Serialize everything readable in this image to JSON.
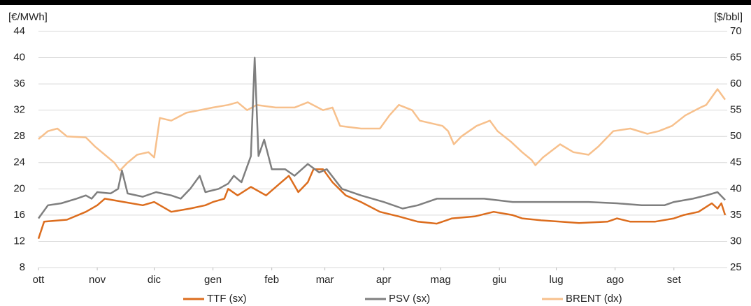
{
  "chart_data": {
    "type": "line",
    "y_label": "[€/MWh]",
    "y2_label": "[$/bbl]",
    "xlim": [
      0,
      362
    ],
    "xticks": [
      {
        "value": 0,
        "label": "ott"
      },
      {
        "value": 31,
        "label": "nov"
      },
      {
        "value": 61,
        "label": "dic"
      },
      {
        "value": 92,
        "label": "gen"
      },
      {
        "value": 123,
        "label": "feb"
      },
      {
        "value": 151,
        "label": "mar"
      },
      {
        "value": 182,
        "label": "apr"
      },
      {
        "value": 212,
        "label": "mag"
      },
      {
        "value": 243,
        "label": "giu"
      },
      {
        "value": 273,
        "label": "lug"
      },
      {
        "value": 304,
        "label": "ago"
      },
      {
        "value": 335,
        "label": "set"
      }
    ],
    "ylim": [
      8,
      44
    ],
    "yticks": [
      8,
      12,
      16,
      20,
      24,
      28,
      32,
      36,
      40,
      44
    ],
    "y2lim": [
      25,
      70
    ],
    "y2ticks": [
      25,
      30,
      35,
      40,
      45,
      50,
      55,
      60,
      65,
      70
    ],
    "grid": true,
    "legend": "bottom",
    "series": [
      {
        "name": "TTF (sx)",
        "color": "#dc6d1e",
        "x": [
          0,
          3,
          15,
          25,
          31,
          35,
          45,
          55,
          61,
          70,
          80,
          88,
          92,
          98,
          100,
          105,
          112,
          120,
          128,
          132,
          137,
          142,
          145,
          150,
          155,
          162,
          170,
          180,
          190,
          200,
          210,
          218,
          230,
          240,
          250,
          255,
          265,
          275,
          285,
          300,
          305,
          312,
          325,
          335,
          340,
          348,
          355,
          358,
          360,
          362
        ],
        "values": [
          12.4,
          15,
          15.3,
          16.5,
          17.5,
          18.5,
          18,
          17.5,
          18,
          16.5,
          17,
          17.5,
          18,
          18.5,
          20,
          19,
          20.3,
          19,
          21,
          22,
          19.5,
          21,
          23,
          23,
          21,
          19,
          18,
          16.5,
          15.8,
          15,
          14.7,
          15.5,
          15.8,
          16.5,
          16,
          15.5,
          15.2,
          15,
          14.8,
          15,
          15.5,
          15,
          15,
          15.5,
          16,
          16.5,
          17.8,
          17,
          17.8,
          16
        ]
      },
      {
        "name": "PSV (sx)",
        "color": "#7f7f7f",
        "x": [
          0,
          5,
          12,
          20,
          25,
          28,
          31,
          38,
          42,
          44,
          47,
          55,
          62,
          70,
          75,
          80,
          85,
          88,
          95,
          100,
          103,
          107,
          112,
          114,
          116,
          119,
          123,
          130,
          135,
          142,
          148,
          152,
          160,
          170,
          182,
          192,
          200,
          210,
          225,
          235,
          250,
          275,
          290,
          305,
          318,
          330,
          335,
          345,
          352,
          358,
          362
        ],
        "values": [
          15.5,
          17.5,
          17.8,
          18.5,
          19,
          18.5,
          19.5,
          19.3,
          20,
          22.8,
          19.3,
          18.8,
          19.5,
          19,
          18.5,
          20,
          22,
          19.5,
          20,
          20.8,
          22,
          21,
          25,
          40,
          25,
          27.5,
          23,
          23,
          22,
          23.8,
          22.5,
          23,
          20,
          19,
          18,
          17,
          17.5,
          18.5,
          18.5,
          18.5,
          18,
          18,
          18,
          17.8,
          17.5,
          17.5,
          18,
          18.5,
          19,
          19.5,
          18.3
        ]
      },
      {
        "name": "BRENT (dx)",
        "color": "#f7c08c",
        "axis": "y2",
        "x": [
          0,
          5,
          10,
          15,
          25,
          30,
          35,
          40,
          43,
          47,
          52,
          58,
          61,
          64,
          70,
          78,
          85,
          92,
          100,
          105,
          110,
          115,
          125,
          135,
          142,
          150,
          155,
          159,
          170,
          180,
          185,
          190,
          197,
          201,
          213,
          216,
          219,
          223,
          231,
          238,
          242,
          249,
          255,
          260,
          262,
          266,
          275,
          282,
          290,
          295,
          303,
          312,
          321,
          327,
          334,
          341,
          349,
          352,
          358,
          362
        ],
        "values": [
          49.5,
          51,
          51.5,
          50,
          49.8,
          48,
          46.5,
          45,
          43.5,
          45,
          46.5,
          47,
          46,
          53.5,
          53,
          54.5,
          55,
          55.5,
          56,
          56.5,
          55,
          56,
          55.5,
          55.5,
          56.5,
          55,
          55.5,
          52,
          51.5,
          51.5,
          54,
          56,
          55,
          53,
          52,
          51,
          48.5,
          50,
          52,
          53,
          51,
          49,
          47,
          45.5,
          44.5,
          46,
          48.5,
          47,
          46.5,
          48,
          51,
          51.5,
          50.5,
          51,
          52,
          54,
          55.5,
          56,
          59,
          57
        ]
      }
    ]
  }
}
